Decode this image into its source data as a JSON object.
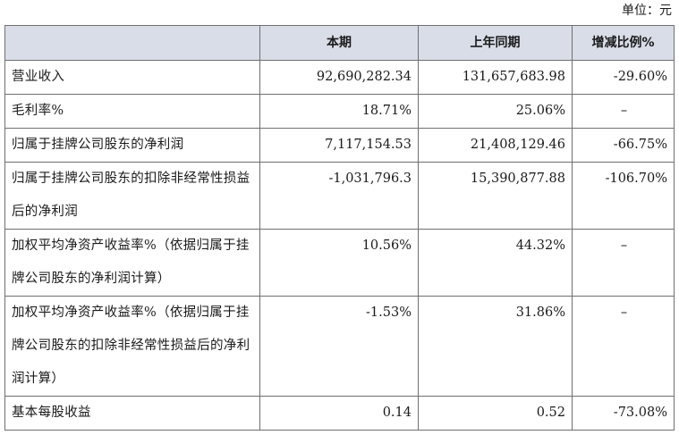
{
  "unit_label": "单位：元",
  "table": {
    "headers": [
      "",
      "本期",
      "上年同期",
      "增减比例%"
    ],
    "rows": [
      {
        "label": "营业收入",
        "current": "92,690,282.34",
        "prior": "131,657,683.98",
        "change": "-29.60%"
      },
      {
        "label": "毛利率%",
        "current": "18.71%",
        "prior": "25.06%",
        "change": "–"
      },
      {
        "label": "归属于挂牌公司股东的净利润",
        "current": "7,117,154.53",
        "prior": "21,408,129.46",
        "change": "-66.75%"
      },
      {
        "label": "归属于挂牌公司股东的扣除非经常性损益后的净利润",
        "current": "-1,031,796.3",
        "prior": "15,390,877.88",
        "change": "-106.70%"
      },
      {
        "label": "加权平均净资产收益率%（依据归属于挂牌公司股东的净利润计算）",
        "current": "10.56%",
        "prior": "44.32%",
        "change": "–"
      },
      {
        "label": "加权平均净资产收益率%（依据归属于挂牌公司股东的扣除非经常性损益后的净利润计算）",
        "current": "-1.53%",
        "prior": "31.86%",
        "change": "–"
      },
      {
        "label": "基本每股收益",
        "current": "0.14",
        "prior": "0.52",
        "change": "-73.08%"
      }
    ]
  }
}
